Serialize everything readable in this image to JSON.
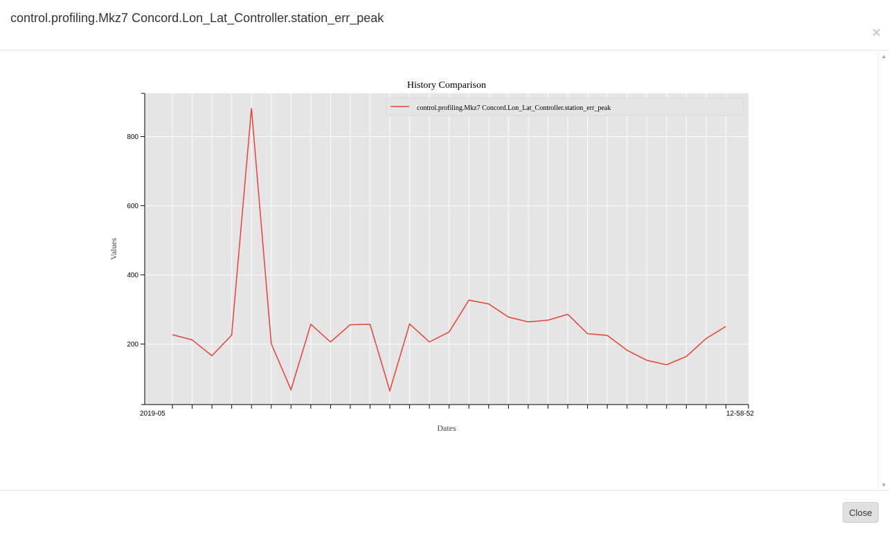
{
  "modal": {
    "title": "control.profiling.Mkz7 Concord.Lon_Lat_Controller.station_err_peak",
    "close_icon": "×",
    "close_button_label": "Close"
  },
  "colors": {
    "plot_background": "#e5e5e5",
    "grid": "#ffffff",
    "series_line": "#e8412f"
  },
  "chart_data": {
    "type": "line",
    "title": "History Comparison",
    "xlabel": "Dates",
    "ylabel": "Values",
    "yticks": [
      200,
      400,
      600,
      800
    ],
    "ylim": [
      25,
      925
    ],
    "grid": true,
    "legend_position": "top",
    "first_xtick_label": "2019-05",
    "last_xtick_label": "12-58-52",
    "series": [
      {
        "name": "control.profiling.Mkz7 Concord.Lon_Lat_Controller.station_err_peak",
        "values": [
          227,
          212,
          166,
          226,
          882,
          201,
          68,
          257,
          206,
          256,
          257,
          65,
          258,
          206,
          235,
          327,
          316,
          278,
          264,
          269,
          286,
          230,
          225,
          182,
          153,
          140,
          164,
          216,
          251
        ]
      }
    ]
  }
}
